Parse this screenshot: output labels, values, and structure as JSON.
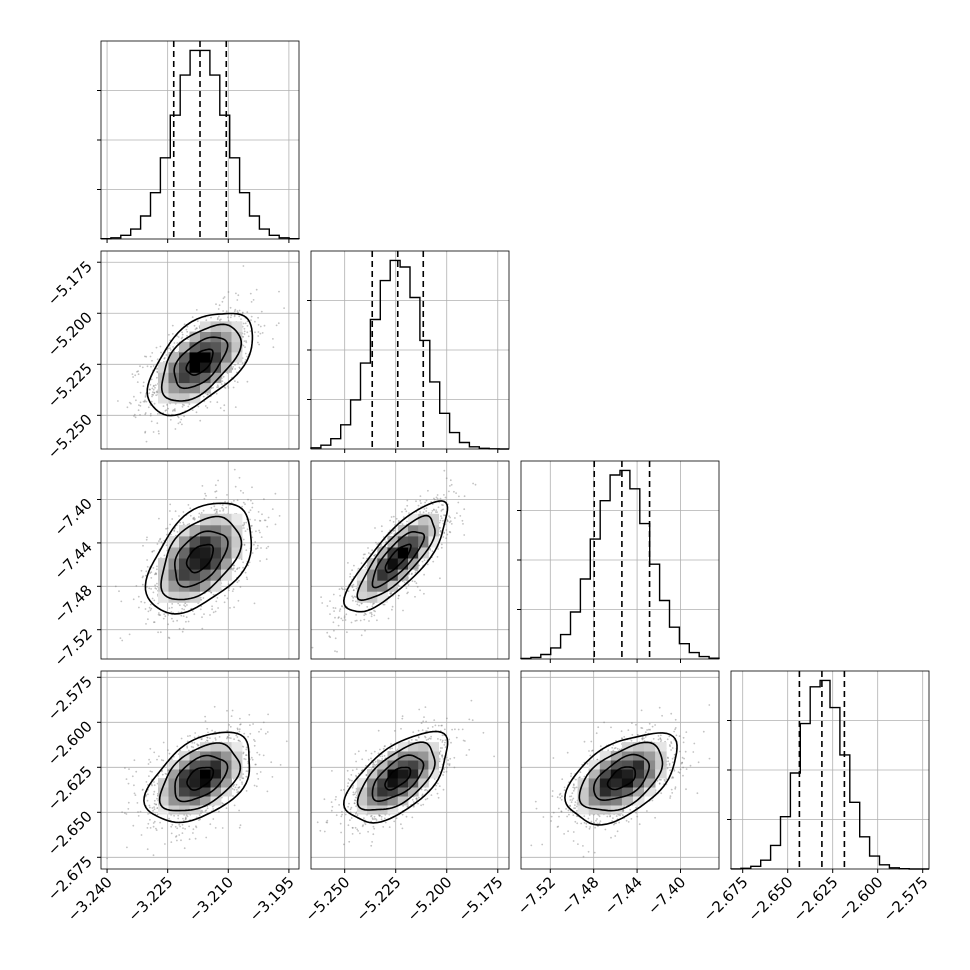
{
  "chart_data": {
    "type": "corner",
    "grid": true,
    "parameters": [
      {
        "mean": -3.217,
        "sd": 0.0065,
        "q16": -3.2235,
        "q50": -3.217,
        "q84": -3.2105,
        "range": [
          -3.2415,
          -3.1925
        ],
        "ticks": [
          -3.24,
          -3.225,
          -3.21,
          -3.195
        ],
        "tick_labels": [
          "−3.240",
          "−3.225",
          "−3.210",
          "−3.195"
        ]
      },
      {
        "mean": -5.224,
        "sd": 0.0125,
        "q16": -5.2365,
        "q50": -5.224,
        "q84": -5.2115,
        "range": [
          -5.2665,
          -5.1695
        ],
        "ticks": [
          -5.175,
          -5.2,
          -5.225,
          -5.25
        ],
        "tick_labels": [
          "−5.175",
          "−5.200",
          "−5.225",
          "−5.250"
        ],
        "x_ticks": [
          -5.25,
          -5.225,
          -5.2,
          -5.175
        ],
        "x_tick_labels": [
          "−5.250",
          "−5.225",
          "−5.200",
          "−5.175"
        ]
      },
      {
        "mean": -7.454,
        "sd": 0.0255,
        "q16": -7.4795,
        "q50": -7.454,
        "q84": -7.4285,
        "range": [
          -7.547,
          -7.3645
        ],
        "ticks": [
          -7.4,
          -7.44,
          -7.48,
          -7.52
        ],
        "tick_labels": [
          "−7.40",
          "−7.44",
          "−7.48",
          "−7.52"
        ],
        "x_ticks": [
          -7.52,
          -7.48,
          -7.44,
          -7.4
        ],
        "x_tick_labels": [
          "−7.52",
          "−7.48",
          "−7.44",
          "−7.40"
        ]
      },
      {
        "mean": -2.631,
        "sd": 0.0125,
        "q16": -2.6435,
        "q50": -2.631,
        "q84": -2.6185,
        "range": [
          -2.6815,
          -2.5715
        ],
        "ticks": [
          -2.575,
          -2.6,
          -2.625,
          -2.65,
          -2.675
        ],
        "tick_labels": [
          "−2.575",
          "−2.600",
          "−2.625",
          "−2.650",
          "−2.675"
        ],
        "x_ticks": [
          -2.675,
          -2.65,
          -2.625,
          -2.6,
          -2.575
        ],
        "x_tick_labels": [
          "−2.675",
          "−2.650",
          "−2.625",
          "−2.600",
          "−2.575"
        ]
      }
    ],
    "correlations": {
      "1-0": 0.55,
      "2-0": 0.45,
      "2-1": 0.8,
      "3-0": 0.45,
      "3-1": 0.6,
      "3-2": 0.5
    },
    "quantiles": [
      0.16,
      0.5,
      0.84
    ],
    "histogram_bins": 20
  },
  "colors": {
    "contour": "#000000",
    "samples": "#7a7a7a",
    "grid": "#b0b0b0"
  }
}
